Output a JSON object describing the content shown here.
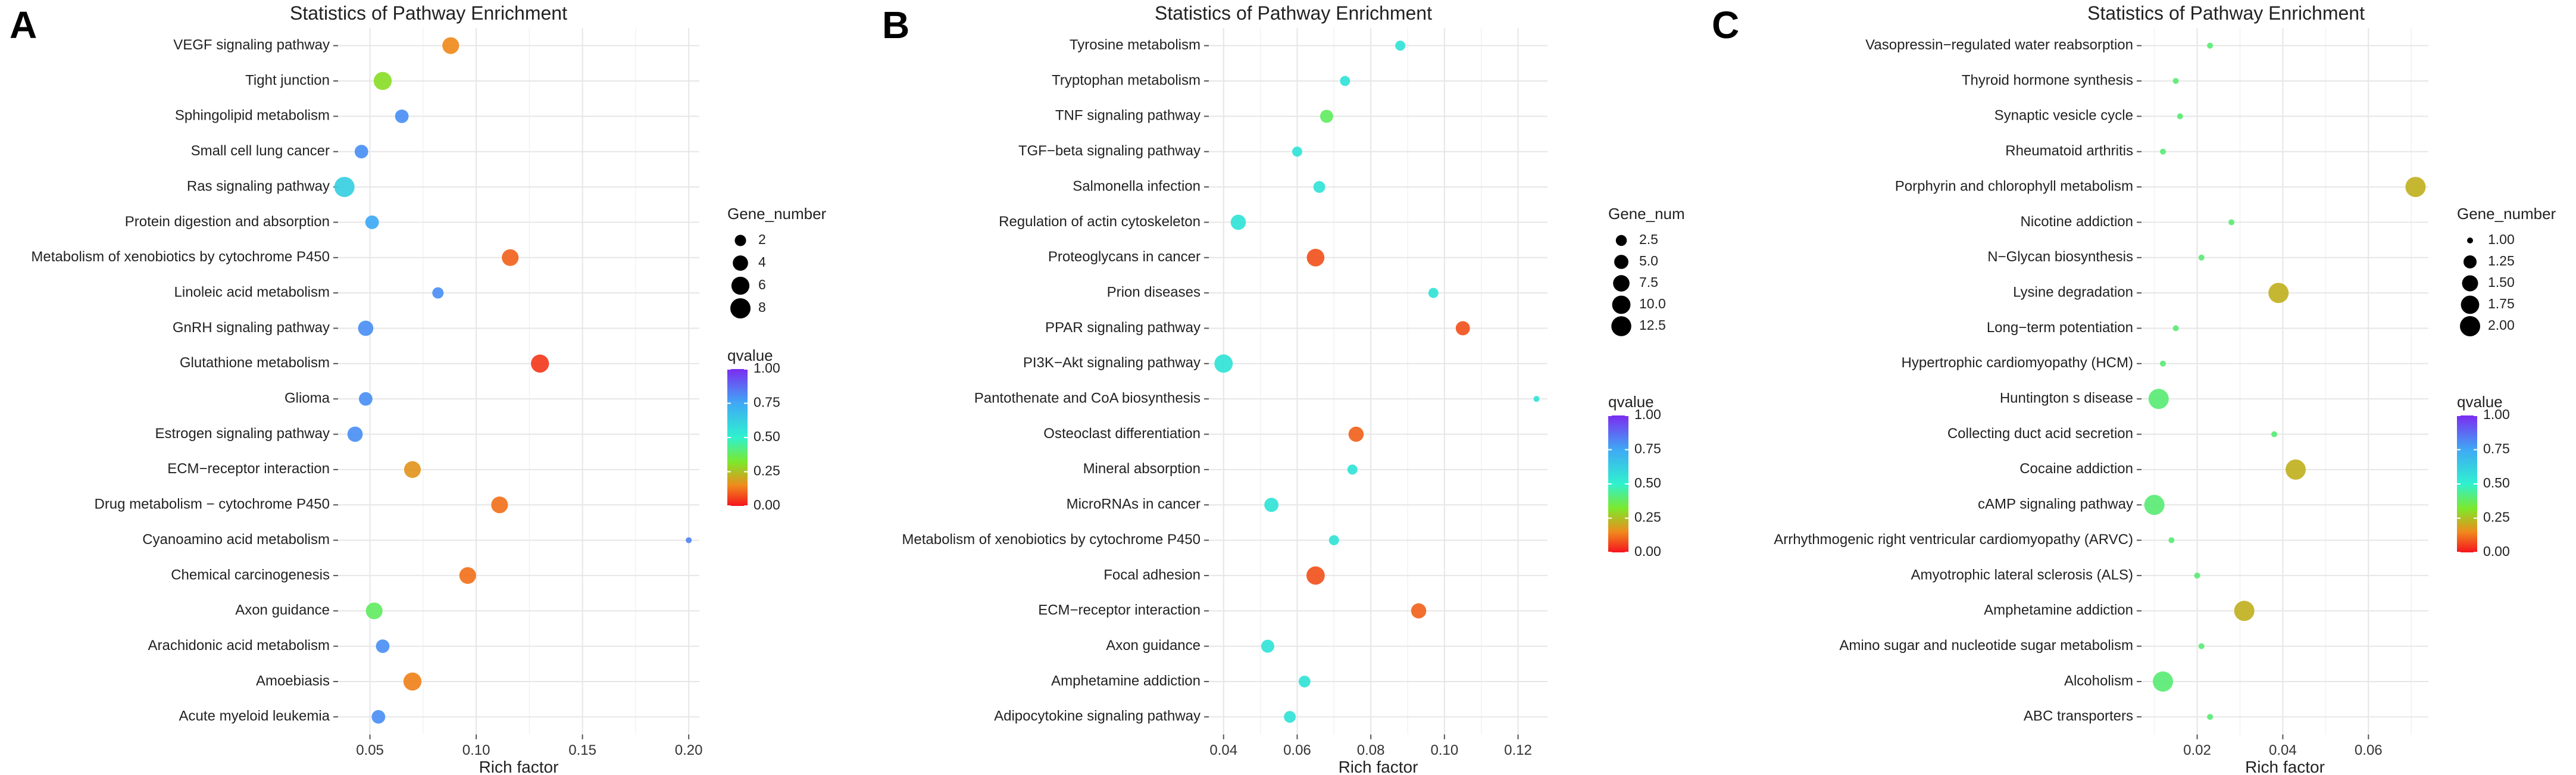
{
  "figure": {
    "panels": [
      "A",
      "B",
      "C"
    ]
  },
  "chart_data": [
    {
      "panel": "A",
      "type": "scatter",
      "title": "Statistics of Pathway Enrichment",
      "xlabel": "Rich factor",
      "xlim": [
        0.035,
        0.205
      ],
      "xticks": [
        0.05,
        0.1,
        0.15,
        0.2
      ],
      "xtick_labels": [
        "0.05",
        "0.10",
        "0.15",
        "0.20"
      ],
      "size_legend": {
        "title": "Gene_number",
        "values": [
          2,
          4,
          6,
          8
        ],
        "labels": [
          "2",
          "4",
          "6",
          "8"
        ],
        "min": 1,
        "max": 8
      },
      "color_legend": {
        "title": "qvalue",
        "ticks": [
          1.0,
          0.75,
          0.5,
          0.25,
          0.0
        ],
        "labels": [
          "1.00",
          "0.75",
          "0.50",
          "0.25",
          "0.00"
        ]
      },
      "pathways": [
        "VEGF signaling pathway",
        "Tight junction",
        "Sphingolipid metabolism",
        "Small cell lung cancer",
        "Ras signaling pathway",
        "Protein digestion and absorption",
        "Metabolism of xenobiotics by cytochrome P450",
        "Linoleic acid metabolism",
        "GnRH signaling pathway",
        "Glutathione metabolism",
        "Glioma",
        "Estrogen signaling pathway",
        "ECM−receptor interaction",
        "Drug metabolism − cytochrome P450",
        "Cyanoamino acid metabolism",
        "Chemical carcinogenesis",
        "Axon guidance",
        "Arachidonic acid metabolism",
        "Amoebiasis",
        "Acute myeloid leukemia"
      ],
      "rich_factor": [
        0.088,
        0.056,
        0.065,
        0.046,
        0.038,
        0.051,
        0.116,
        0.082,
        0.048,
        0.13,
        0.048,
        0.043,
        0.07,
        0.111,
        0.2,
        0.096,
        0.052,
        0.056,
        0.07,
        0.054
      ],
      "gene_number": [
        5,
        6,
        3,
        3,
        8,
        3,
        5,
        2,
        4,
        6,
        3,
        4,
        5,
        5,
        1,
        5,
        5,
        3,
        6,
        3
      ],
      "qvalue": [
        0.15,
        0.3,
        0.8,
        0.8,
        0.62,
        0.75,
        0.1,
        0.8,
        0.8,
        0.05,
        0.8,
        0.8,
        0.17,
        0.12,
        0.82,
        0.12,
        0.38,
        0.8,
        0.14,
        0.8
      ]
    },
    {
      "panel": "B",
      "type": "scatter",
      "title": "Statistics of Pathway Enrichment",
      "xlabel": "Rich factor",
      "xlim": [
        0.036,
        0.128
      ],
      "xticks": [
        0.04,
        0.06,
        0.08,
        0.1,
        0.12
      ],
      "xtick_labels": [
        "0.04",
        "0.06",
        "0.08",
        "0.10",
        "0.12"
      ],
      "size_legend": {
        "title": "Gene_num",
        "values": [
          2.5,
          5.0,
          7.5,
          10.0,
          12.5
        ],
        "labels": [
          "2.5",
          "5.0",
          "7.5",
          "10.0",
          "12.5"
        ],
        "min": 1,
        "max": 13
      },
      "color_legend": {
        "title": "qvalue",
        "ticks": [
          1.0,
          0.75,
          0.5,
          0.25,
          0.0
        ],
        "labels": [
          "1.00",
          "0.75",
          "0.50",
          "0.25",
          "0.00"
        ]
      },
      "pathways": [
        "Tyrosine metabolism",
        "Tryptophan metabolism",
        "TNF signaling pathway",
        "TGF−beta signaling pathway",
        "Salmonella infection",
        "Regulation of actin cytoskeleton",
        "Proteoglycans in cancer",
        "Prion diseases",
        "PPAR signaling pathway",
        "PI3K−Akt signaling pathway",
        "Pantothenate and CoA biosynthesis",
        "Osteoclast differentiation",
        "Mineral absorption",
        "MicroRNAs in cancer",
        "Metabolism of xenobiotics by cytochrome P450",
        "Focal adhesion",
        "ECM−receptor interaction",
        "Axon guidance",
        "Amphetamine addiction",
        "Adipocytokine signaling pathway"
      ],
      "rich_factor": [
        0.088,
        0.073,
        0.068,
        0.06,
        0.066,
        0.044,
        0.065,
        0.097,
        0.105,
        0.04,
        0.125,
        0.076,
        0.075,
        0.053,
        0.07,
        0.065,
        0.093,
        0.052,
        0.062,
        0.058
      ],
      "gene_number": [
        2,
        2,
        4,
        2,
        3,
        6,
        9,
        2,
        5,
        10,
        1,
        6,
        2,
        5,
        2,
        10,
        6,
        4,
        3,
        3
      ],
      "qvalue": [
        0.55,
        0.55,
        0.38,
        0.55,
        0.55,
        0.55,
        0.08,
        0.55,
        0.08,
        0.55,
        0.55,
        0.1,
        0.55,
        0.55,
        0.55,
        0.08,
        0.1,
        0.55,
        0.55,
        0.55
      ]
    },
    {
      "panel": "C",
      "type": "scatter",
      "title": "Statistics of Pathway Enrichment",
      "xlabel": "Rich factor",
      "xlim": [
        0.007,
        0.074
      ],
      "xticks": [
        0.02,
        0.04,
        0.06
      ],
      "xtick_labels": [
        "0.02",
        "0.04",
        "0.06"
      ],
      "size_legend": {
        "title": "Gene_number",
        "values": [
          1.0,
          1.25,
          1.5,
          1.75,
          2.0
        ],
        "labels": [
          "1.00",
          "1.25",
          "1.50",
          "1.75",
          "2.00"
        ],
        "min": 1,
        "max": 2
      },
      "color_legend": {
        "title": "qvalue",
        "ticks": [
          1.0,
          0.75,
          0.5,
          0.25,
          0.0
        ],
        "labels": [
          "1.00",
          "0.75",
          "0.50",
          "0.25",
          "0.00"
        ]
      },
      "pathways": [
        "Vasopressin−regulated water reabsorption",
        "Thyroid hormone synthesis",
        "Synaptic vesicle cycle",
        "Rheumatoid arthritis",
        "Porphyrin and chlorophyll metabolism",
        "Nicotine addiction",
        "N−Glycan biosynthesis",
        "Lysine degradation",
        "Long−term potentiation",
        "Hypertrophic cardiomyopathy (HCM)",
        "Huntington s disease",
        "Collecting duct acid secretion",
        "Cocaine addiction",
        "cAMP signaling pathway",
        "Arrhythmogenic right ventricular cardiomyopathy (ARVC)",
        "Amyotrophic lateral sclerosis (ALS)",
        "Amphetamine addiction",
        "Amino sugar and nucleotide sugar metabolism",
        "Alcoholism",
        "ABC transporters"
      ],
      "rich_factor": [
        0.023,
        0.015,
        0.016,
        0.012,
        0.071,
        0.028,
        0.021,
        0.039,
        0.015,
        0.012,
        0.011,
        0.038,
        0.043,
        0.01,
        0.014,
        0.02,
        0.031,
        0.021,
        0.012,
        0.023
      ],
      "gene_number": [
        1,
        1,
        1,
        1,
        2,
        1,
        1,
        2,
        1,
        1,
        2,
        1,
        2,
        2,
        1,
        1,
        2,
        1,
        2,
        1
      ],
      "qvalue": [
        0.4,
        0.4,
        0.4,
        0.4,
        0.22,
        0.4,
        0.4,
        0.22,
        0.4,
        0.4,
        0.4,
        0.4,
        0.22,
        0.4,
        0.4,
        0.4,
        0.22,
        0.4,
        0.4,
        0.4
      ]
    }
  ]
}
